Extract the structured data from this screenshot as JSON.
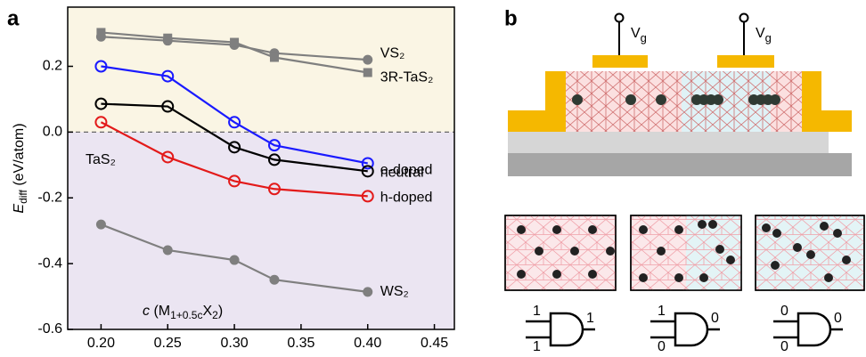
{
  "panel_labels": [
    "a",
    "b"
  ],
  "chart_data": {
    "type": "line",
    "y_label": [
      "E",
      "diff",
      " (eV/atom)"
    ],
    "x_label": [
      "c",
      " (M",
      "1+0.5c",
      "X",
      "2",
      ")"
    ],
    "x": [
      0.2,
      0.25,
      0.3,
      0.33,
      0.4
    ],
    "xlim": [
      0.175,
      0.465
    ],
    "xticks": [
      {
        "value": 0.2,
        "label": "0.20"
      },
      {
        "value": 0.25,
        "label": "0.25"
      },
      {
        "value": 0.3,
        "label": "0.30"
      },
      {
        "value": 0.35,
        "label": "0.35"
      },
      {
        "value": 0.4,
        "label": "0.40"
      },
      {
        "value": 0.45,
        "label": "0.45"
      }
    ],
    "ylim": [
      -0.6,
      0.38
    ],
    "yticks": [
      0.2,
      {
        "value": 0,
        "label": "0.0"
      },
      -0.2,
      -0.4,
      -0.6
    ],
    "reference_line": 0,
    "series": [
      {
        "name": "VS₂",
        "color": "#7f7f7f",
        "marker": "circle",
        "filled": true,
        "values": [
          0.29,
          0.278,
          0.265,
          0.24,
          0.22
        ]
      },
      {
        "name": "3R-TaS₂",
        "color": "#7f7f7f",
        "marker": "square",
        "filled": true,
        "values": [
          0.303,
          0.286,
          0.273,
          0.227,
          0.181
        ]
      },
      {
        "name": "e-doped",
        "color": "#1a1aff",
        "marker": "circle",
        "filled": false,
        "values": [
          0.2,
          0.17,
          0.03,
          -0.04,
          -0.095
        ]
      },
      {
        "name": "neutral",
        "color": "#000000",
        "marker": "circle",
        "filled": false,
        "values": [
          0.086,
          0.078,
          -0.046,
          -0.084,
          -0.119
        ]
      },
      {
        "name": "h-doped",
        "color": "#e31a1a",
        "marker": "circle",
        "filled": false,
        "values": [
          0.03,
          -0.076,
          -0.149,
          -0.173,
          -0.195
        ]
      },
      {
        "name": "WS₂",
        "color": "#7f7f7f",
        "marker": "circle",
        "filled": true,
        "values": [
          -0.281,
          -0.359,
          -0.389,
          -0.449,
          -0.486
        ]
      }
    ],
    "annotation": "TaS₂"
  },
  "diagram": {
    "gate_labels": [
      [
        "V",
        "g"
      ],
      [
        "V",
        "g"
      ]
    ],
    "logic_gates": [
      {
        "inputs": [
          "1",
          "1"
        ],
        "output": "1"
      },
      {
        "inputs": [
          "1",
          "0"
        ],
        "output": "0"
      },
      {
        "inputs": [
          "0",
          "0"
        ],
        "output": "0"
      }
    ]
  }
}
